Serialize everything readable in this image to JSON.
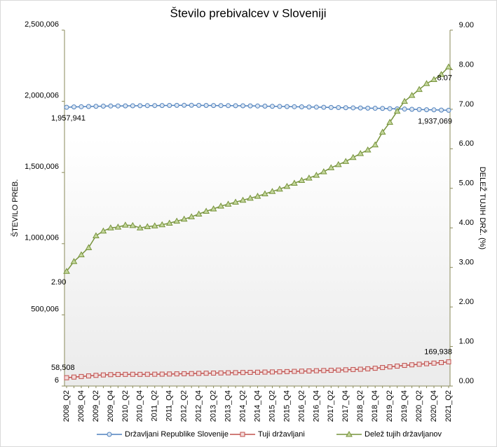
{
  "chart_data": {
    "type": "line",
    "title": "Število prebivalcev v Sloveniji",
    "ylabel": "ŠTEVILO PREB.",
    "y2label": "DELEŽ TUJIH DRŽ. (%)",
    "categories": [
      "2008_Q2",
      null,
      "2008_Q4",
      null,
      "2009_Q2",
      null,
      "2009_Q4",
      null,
      "2010_Q2",
      null,
      "2010_Q4",
      null,
      "2011_Q2",
      null,
      "2011_Q4",
      null,
      "2012_Q2",
      null,
      "2012_Q4",
      null,
      "2013_Q2",
      null,
      "2013_Q4",
      null,
      "2014_Q2",
      null,
      "2014_Q4",
      null,
      "2015_Q2",
      null,
      "2015_Q4",
      null,
      "2016_Q2",
      null,
      "2016_Q4",
      null,
      "2017_Q2",
      null,
      "2017_Q4",
      null,
      "2018_Q2",
      null,
      "2018_Q4",
      null,
      "2019_Q2",
      null,
      "2019_Q4",
      null,
      "2020_Q2",
      null,
      "2020_Q4",
      null,
      "2021_Q2"
    ],
    "series": [
      {
        "name": "Državljani Republike Slovenije",
        "color": "#4f81bd",
        "fill": "#dce6f2",
        "marker": "circle",
        "axis": "y",
        "values": [
          1957941,
          1960500,
          1962000,
          1963500,
          1965000,
          1966000,
          1967000,
          1967500,
          1968000,
          1968500,
          1969000,
          1969500,
          1970000,
          1970500,
          1971000,
          1971500,
          1972000,
          1972000,
          1971500,
          1971000,
          1970500,
          1970000,
          1969500,
          1969000,
          1968500,
          1968000,
          1967000,
          1966000,
          1965000,
          1964000,
          1963000,
          1962000,
          1961000,
          1960000,
          1959000,
          1958000,
          1957000,
          1956000,
          1955000,
          1954000,
          1953000,
          1952000,
          1951000,
          1950000,
          1948500,
          1947000,
          1945500,
          1944000,
          1942500,
          1941000,
          1940000,
          1938500,
          1937069
        ],
        "value_labels": [
          "1,957,941",
          null,
          null,
          null,
          null,
          null,
          null,
          null,
          null,
          null,
          null,
          null,
          null,
          null,
          null,
          null,
          null,
          null,
          null,
          null,
          null,
          null,
          null,
          null,
          null,
          null,
          null,
          null,
          null,
          null,
          null,
          null,
          null,
          null,
          null,
          null,
          null,
          null,
          null,
          null,
          null,
          null,
          null,
          null,
          null,
          null,
          null,
          null,
          null,
          null,
          null,
          null,
          "1,937,069"
        ]
      },
      {
        "name": "Tuji državljani",
        "color": "#c0504d",
        "fill": "#f2dcdb",
        "marker": "square",
        "axis": "y",
        "values": [
          58508,
          63000,
          67000,
          71000,
          75000,
          78000,
          80000,
          81500,
          82000,
          82500,
          82000,
          82500,
          83000,
          83500,
          84500,
          85500,
          86500,
          87500,
          89000,
          90000,
          91000,
          92000,
          93000,
          94000,
          95000,
          96000,
          97000,
          98000,
          99000,
          100000,
          101500,
          103000,
          104500,
          106000,
          107500,
          109000,
          110500,
          112000,
          114000,
          116000,
          118000,
          121000,
          125000,
          130000,
          135000,
          140000,
          145000,
          149000,
          153000,
          157000,
          161000,
          165000,
          169938
        ],
        "value_labels": [
          "58,508",
          null,
          null,
          null,
          null,
          null,
          null,
          null,
          null,
          null,
          null,
          null,
          null,
          null,
          null,
          null,
          null,
          null,
          null,
          null,
          null,
          null,
          null,
          null,
          null,
          null,
          null,
          null,
          null,
          null,
          null,
          null,
          null,
          null,
          null,
          null,
          null,
          null,
          null,
          null,
          null,
          null,
          null,
          null,
          null,
          null,
          null,
          null,
          null,
          null,
          null,
          null,
          "169,938"
        ]
      },
      {
        "name": "Delež tujih državljanov",
        "color": "#77933c",
        "fill": "#c3d69b",
        "marker": "triangle",
        "axis": "y2",
        "values": [
          2.9,
          3.15,
          3.32,
          3.5,
          3.8,
          3.92,
          4.0,
          4.02,
          4.07,
          4.06,
          4.0,
          4.03,
          4.05,
          4.08,
          4.12,
          4.17,
          4.22,
          4.28,
          4.35,
          4.42,
          4.48,
          4.55,
          4.6,
          4.65,
          4.7,
          4.75,
          4.8,
          4.86,
          4.92,
          4.98,
          5.05,
          5.13,
          5.2,
          5.26,
          5.33,
          5.42,
          5.52,
          5.6,
          5.68,
          5.78,
          5.88,
          5.97,
          6.1,
          6.42,
          6.67,
          6.95,
          7.2,
          7.35,
          7.5,
          7.65,
          7.75,
          7.88,
          8.07
        ],
        "value_labels": [
          "2.90",
          null,
          null,
          null,
          null,
          null,
          null,
          null,
          null,
          null,
          null,
          null,
          null,
          null,
          null,
          null,
          null,
          null,
          null,
          null,
          null,
          null,
          null,
          null,
          null,
          null,
          null,
          null,
          null,
          null,
          null,
          null,
          null,
          null,
          null,
          null,
          null,
          null,
          null,
          null,
          null,
          null,
          null,
          null,
          null,
          null,
          null,
          null,
          null,
          null,
          null,
          null,
          "8.07"
        ]
      }
    ],
    "ylim": [
      6,
      2500006
    ],
    "yticks": [
      {
        "value": 6,
        "label": "6"
      },
      {
        "value": 500006,
        "label": "500,006"
      },
      {
        "value": 1000006,
        "label": "1,000,006"
      },
      {
        "value": 1500006,
        "label": "1,500,006"
      },
      {
        "value": 2000006,
        "label": "2,000,006"
      },
      {
        "value": 2500006,
        "label": "2,500,006"
      }
    ],
    "y2lim": [
      0,
      9
    ],
    "y2ticks": [
      {
        "value": 0,
        "label": "0.00"
      },
      {
        "value": 1,
        "label": "1.00"
      },
      {
        "value": 2,
        "label": "2.00"
      },
      {
        "value": 3,
        "label": "3.00"
      },
      {
        "value": 4,
        "label": "4.00"
      },
      {
        "value": 5,
        "label": "5.00"
      },
      {
        "value": 6,
        "label": "6.00"
      },
      {
        "value": 7,
        "label": "7.00"
      },
      {
        "value": 8,
        "label": "8.00"
      },
      {
        "value": 9,
        "label": "9.00"
      }
    ],
    "grid": false,
    "legend": "bottom"
  }
}
